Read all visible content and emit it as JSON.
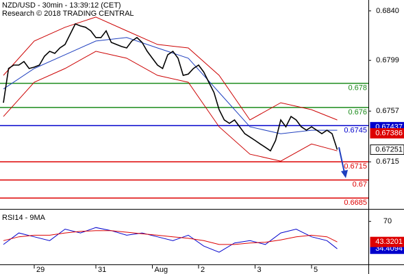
{
  "chart_data": {
    "type": "line",
    "title": "NZD/USD - 30min - 13:39:12 (CET)",
    "subtitle": "Research © 2018 TRADING CENTRAL",
    "categories": [
      null,
      null,
      null,
      null,
      null,
      null,
      "29",
      null,
      null,
      null,
      null,
      null,
      null,
      null,
      null,
      null,
      null,
      null,
      "31",
      null,
      null,
      null,
      null,
      null,
      null,
      null,
      null,
      null,
      null,
      "Aug",
      null,
      null,
      null,
      null,
      null,
      null,
      null,
      null,
      "2",
      null,
      null,
      null,
      null,
      null,
      null,
      null,
      null,
      null,
      null,
      "3",
      null,
      null,
      null,
      null,
      null,
      null,
      null,
      null,
      null,
      null,
      "5",
      null,
      null,
      null,
      null,
      null
    ],
    "color": "#000000",
    "values": [
      0.67639,
      0.67923,
      0.67951,
      0.67951,
      0.6798,
      0.67923,
      0.67934,
      0.67951,
      0.68025,
      0.68065,
      0.68048,
      0.68093,
      0.68122,
      0.68207,
      0.68292,
      0.68275,
      0.68264,
      0.68235,
      0.68179,
      0.68179,
      0.68235,
      0.68139,
      0.68122,
      0.68105,
      0.68093,
      0.6815,
      0.68179,
      0.68139,
      0.68065,
      0.68008,
      0.67951,
      0.67923,
      0.68037,
      0.68065,
      0.68008,
      0.67866,
      0.67877,
      0.67923,
      0.67951,
      0.67894,
      0.67809,
      0.67724,
      0.67582,
      0.67497,
      0.67469,
      0.67497,
      0.6744,
      0.67383,
      0.67355,
      0.67327,
      0.67298,
      0.6727,
      0.67241,
      0.67327,
      0.67497,
      0.6744,
      0.67525,
      0.67497,
      0.6744,
      0.67412,
      0.6744,
      0.67412,
      0.67383,
      0.67412,
      0.67383,
      0.67251
    ],
    "overlays": {
      "x": [
        0,
        6,
        12,
        18,
        24,
        30,
        36,
        42,
        48,
        54,
        60,
        65
      ],
      "series": [
        {
          "color": "#cc0000",
          "values": [
            0.67866,
            0.6815,
            0.68264,
            0.68349,
            0.68235,
            0.68122,
            0.68093,
            0.67866,
            0.67497,
            0.67639,
            0.67582,
            0.67497
          ]
        },
        {
          "color": "#cc0000",
          "values": [
            0.67525,
            0.67809,
            0.67923,
            0.68065,
            0.68008,
            0.67866,
            0.67809,
            0.6744,
            0.67213,
            0.67156,
            0.67298,
            0.67241
          ]
        },
        {
          "color": "#1f3fbf",
          "values": [
            0.67753,
            0.67923,
            0.68037,
            0.6815,
            0.68179,
            0.68093,
            0.68008,
            0.67724,
            0.6744,
            0.67383,
            0.67412,
            0.67412
          ]
        }
      ]
    },
    "levels": [
      {
        "value": 0.678,
        "color": "#1a8a1a"
      },
      {
        "value": 0.676,
        "color": "#1a8a1a"
      },
      {
        "value": 0.6745,
        "color": "#0000cc"
      },
      {
        "value": 0.6715,
        "color": "#dd0000"
      },
      {
        "value": 0.67,
        "color": "#dd0000"
      },
      {
        "value": 0.6685,
        "color": "#dd0000"
      }
    ],
    "price_badges": [
      {
        "value": 0.67437,
        "color": "#0000cc"
      },
      {
        "value": 0.67386,
        "color": "#dd0000"
      }
    ],
    "ylim": [
      0.6676,
      0.6849
    ],
    "yticks": [
      0.6715,
      0.6757,
      0.6799,
      {
        "value": 0.684,
        "label": "0.6840"
      }
    ],
    "rsi": {
      "title": "RSI14 - 9MA",
      "ylim": [
        15,
        80
      ],
      "yticks": [
        70
      ],
      "x": [
        0,
        3,
        6,
        9,
        12,
        15,
        18,
        21,
        24,
        27,
        30,
        33,
        36,
        39,
        42,
        45,
        48,
        51,
        54,
        57,
        60,
        63,
        65
      ],
      "series": [
        {
          "color": "#0000cc",
          "values": [
            40,
            55,
            50,
            45,
            60,
            55,
            62,
            58,
            52,
            55,
            50,
            45,
            52,
            38,
            30,
            42,
            45,
            40,
            55,
            60,
            50,
            45,
            34.4094
          ]
        },
        {
          "color": "#dd0000",
          "values": [
            45,
            50,
            52,
            52,
            55,
            57,
            58,
            58,
            56,
            54,
            52,
            50,
            48,
            45,
            40,
            40,
            42,
            43,
            46,
            50,
            52,
            50,
            43.3201
          ]
        }
      ]
    }
  }
}
